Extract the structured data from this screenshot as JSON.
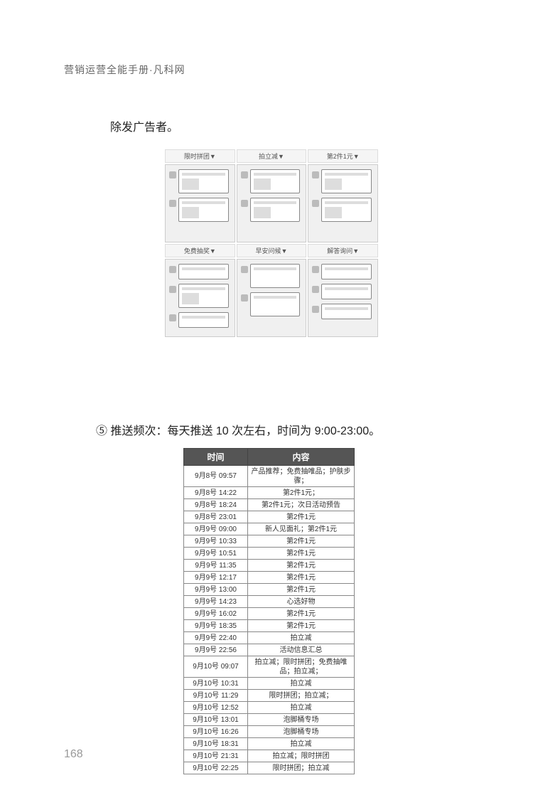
{
  "header": {
    "text": "营销运营全能手册·凡科网"
  },
  "paragraph1": "除发广告者。",
  "grid": {
    "row1_labels": [
      "限时拼团▼",
      "拍立减▼",
      "第2件1元▼"
    ],
    "row2_labels": [
      "免费抽奖▼",
      "早安问候▼",
      "解答询问▼"
    ]
  },
  "paragraph2": "⑤ 推送频次：每天推送 10 次左右，时间为 9:00-23:00。",
  "table": {
    "headers": {
      "time": "时间",
      "content": "内容"
    },
    "rows": [
      {
        "time": "9月8号 09:57",
        "content": "产品推荐；免费抽唯品；护肤步骤；"
      },
      {
        "time": "9月8号 14:22",
        "content": "第2件1元；"
      },
      {
        "time": "9月8号 18:24",
        "content": "第2件1元；次日活动预告"
      },
      {
        "time": "9月8号 23:01",
        "content": "第2件1元"
      },
      {
        "time": "9月9号 09:00",
        "content": "新人见面礼；第2件1元"
      },
      {
        "time": "9月9号 10:33",
        "content": "第2件1元"
      },
      {
        "time": "9月9号 10:51",
        "content": "第2件1元"
      },
      {
        "time": "9月9号 11:35",
        "content": "第2件1元"
      },
      {
        "time": "9月9号 12:17",
        "content": "第2件1元"
      },
      {
        "time": "9月9号 13:00",
        "content": "第2件1元"
      },
      {
        "time": "9月9号 14:23",
        "content": "心选好物"
      },
      {
        "time": "9月9号 16:02",
        "content": "第2件1元"
      },
      {
        "time": "9月9号 18:35",
        "content": "第2件1元"
      },
      {
        "time": "9月9号 22:40",
        "content": "拍立减"
      },
      {
        "time": "9月9号 22:56",
        "content": "活动信息汇总"
      },
      {
        "time": "9月10号 09:07",
        "content": "拍立减；限时拼团；免费抽唯品；拍立减；"
      },
      {
        "time": "9月10号 10:31",
        "content": "拍立减"
      },
      {
        "time": "9月10号 11:29",
        "content": "限时拼团；拍立减；"
      },
      {
        "time": "9月10号 12:52",
        "content": "拍立减"
      },
      {
        "time": "9月10号 13:01",
        "content": "泡脚桶专场"
      },
      {
        "time": "9月10号 16:26",
        "content": "泡脚桶专场"
      },
      {
        "time": "9月10号 18:31",
        "content": "拍立减"
      },
      {
        "time": "9月10号 21:31",
        "content": "拍立减；限时拼团"
      },
      {
        "time": "9月10号 22:25",
        "content": "限时拼团；拍立减"
      }
    ]
  },
  "pageNumber": "168"
}
